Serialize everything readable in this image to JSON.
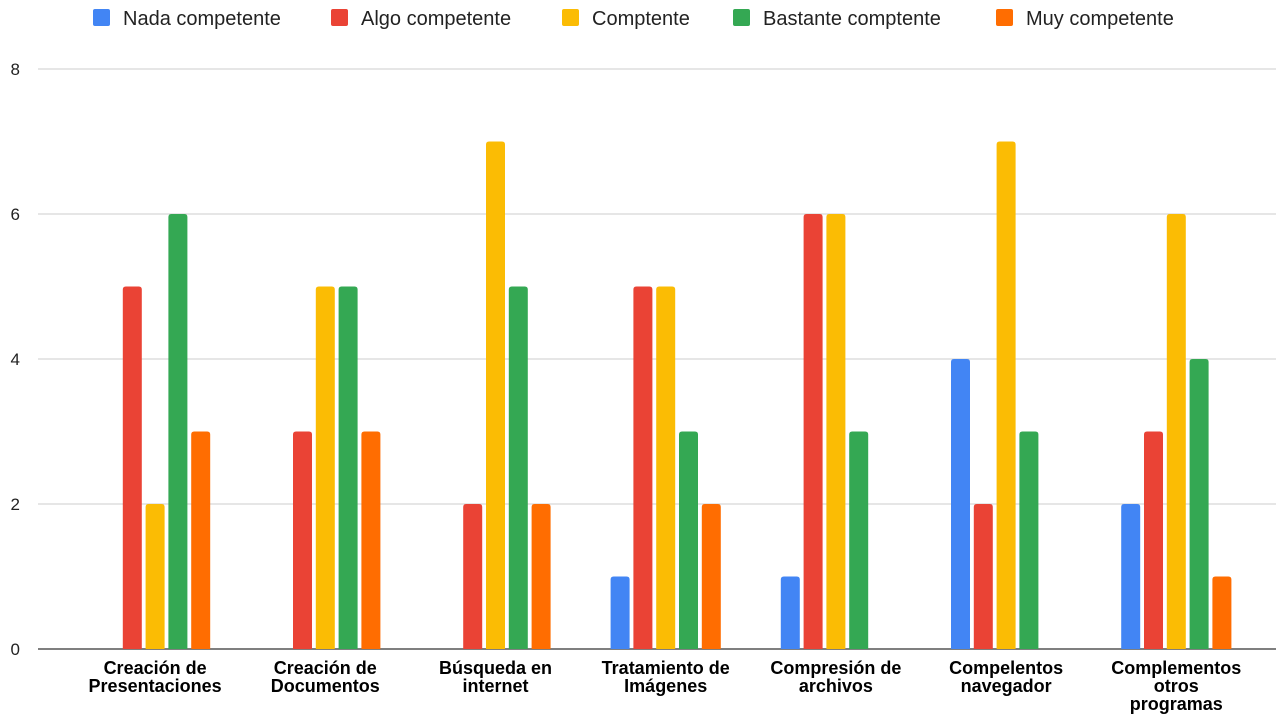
{
  "chart_data": {
    "type": "bar",
    "title": "",
    "xlabel": "",
    "ylabel": "",
    "ylim": [
      0,
      8
    ],
    "y_ticks": [
      "0",
      "2",
      "4",
      "6",
      "8"
    ],
    "grid": true,
    "legend_position": "top",
    "categories": [
      [
        "Creación de",
        "Presentaciones"
      ],
      [
        "Creación de",
        "Documentos"
      ],
      [
        "Búsqueda en",
        "internet"
      ],
      [
        "Tratamiento de",
        "Imágenes"
      ],
      [
        "Compresión de",
        "archivos"
      ],
      [
        "Compelentos",
        "navegador"
      ],
      [
        "Complementos",
        "otros",
        "programas"
      ]
    ],
    "series": [
      {
        "name": "Nada competente",
        "color": "#4285f4",
        "values": [
          0,
          0,
          0,
          1,
          1,
          4,
          2
        ]
      },
      {
        "name": "Algo competente",
        "color": "#ea4335",
        "values": [
          5,
          3,
          2,
          5,
          6,
          2,
          3
        ]
      },
      {
        "name": "Comptente",
        "color": "#fbbc04",
        "values": [
          2,
          5,
          7,
          5,
          6,
          7,
          6
        ]
      },
      {
        "name": "Bastante comptente",
        "color": "#34a853",
        "values": [
          6,
          5,
          5,
          3,
          3,
          3,
          4
        ]
      },
      {
        "name": "Muy competente",
        "color": "#ff6d01",
        "values": [
          3,
          3,
          2,
          2,
          0,
          0,
          1
        ]
      }
    ]
  }
}
